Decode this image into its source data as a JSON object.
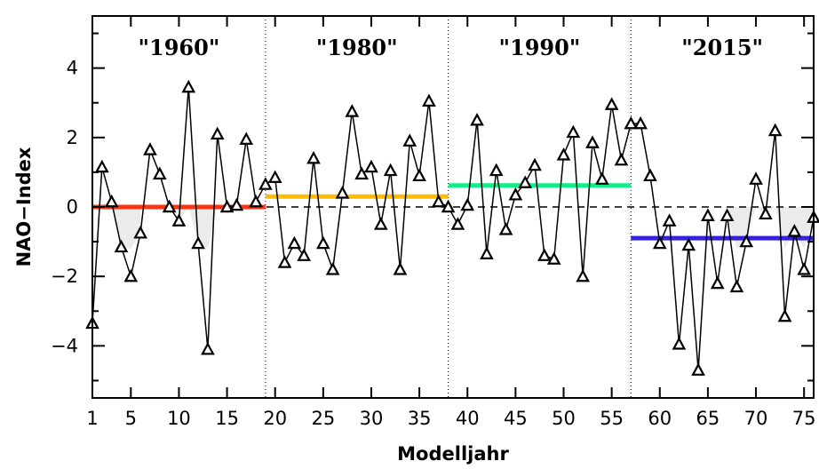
{
  "chart_data": {
    "type": "line",
    "xlabel": "Modelljahr",
    "ylabel": "NAO−Index",
    "xlim": [
      1,
      76
    ],
    "ylim": [
      -5.5,
      5.5
    ],
    "x_ticks": [
      1,
      5,
      10,
      15,
      20,
      25,
      30,
      35,
      40,
      45,
      50,
      55,
      60,
      65,
      70,
      75
    ],
    "y_ticks": [
      -4,
      -2,
      0,
      2,
      4
    ],
    "y_tick_labels": [
      "−4",
      "−2",
      "0",
      "2",
      "4"
    ],
    "zero_line": "dashed",
    "marker": "triangle",
    "x": [
      1,
      2,
      3,
      4,
      5,
      6,
      7,
      8,
      9,
      10,
      11,
      12,
      13,
      14,
      15,
      16,
      17,
      18,
      19,
      20,
      21,
      22,
      23,
      24,
      25,
      26,
      27,
      28,
      29,
      30,
      31,
      32,
      33,
      34,
      35,
      36,
      37,
      38,
      39,
      40,
      41,
      42,
      43,
      44,
      45,
      46,
      47,
      48,
      49,
      50,
      51,
      52,
      53,
      54,
      55,
      56,
      57,
      58,
      59,
      60,
      61,
      62,
      63,
      64,
      65,
      66,
      67,
      68,
      69,
      70,
      71,
      72,
      73,
      74,
      75,
      76
    ],
    "series": [
      {
        "values": [
          -3.35,
          1.15,
          0.15,
          -1.15,
          -2.0,
          -0.75,
          1.65,
          0.95,
          0.0,
          -0.4,
          3.45,
          -1.05,
          -4.1,
          2.1,
          0.0,
          0.05,
          1.95,
          0.15,
          0.65,
          0.85,
          -1.6,
          -1.05,
          -1.4,
          1.4,
          -1.05,
          -1.8,
          0.4,
          2.75,
          0.95,
          1.15,
          -0.5,
          1.05,
          -1.8,
          1.9,
          0.9,
          3.05,
          0.15,
          0.0,
          -0.5,
          0.05,
          2.5,
          -1.35,
          1.05,
          -0.65,
          0.35,
          0.7,
          1.2,
          -1.4,
          -1.5,
          1.5,
          2.15,
          -2.0,
          1.85,
          0.8,
          2.95,
          1.35,
          2.4,
          2.4,
          0.9,
          -1.05,
          -0.4,
          -3.95,
          -1.1,
          -4.7,
          -0.25,
          -2.2,
          -0.25,
          -2.3,
          -1.0,
          0.8,
          -0.2,
          2.2,
          -3.15,
          -0.7,
          -1.8,
          -0.3
        ]
      }
    ],
    "periods": [
      {
        "label": "\"1960\"",
        "x_start": 1,
        "x_end": 19,
        "mean": 0.0,
        "color": "#ff3311"
      },
      {
        "label": "\"1980\"",
        "x_start": 19,
        "x_end": 38,
        "mean": 0.3,
        "color": "#ffbb00"
      },
      {
        "label": "\"1990\"",
        "x_start": 38,
        "x_end": 57,
        "mean": 0.62,
        "color": "#11ee88"
      },
      {
        "label": "\"2015\"",
        "x_start": 57,
        "x_end": 76,
        "mean": -0.9,
        "color": "#3322dd"
      }
    ],
    "period_separators": [
      19,
      38,
      57
    ],
    "shading_color": "#dddddd"
  }
}
